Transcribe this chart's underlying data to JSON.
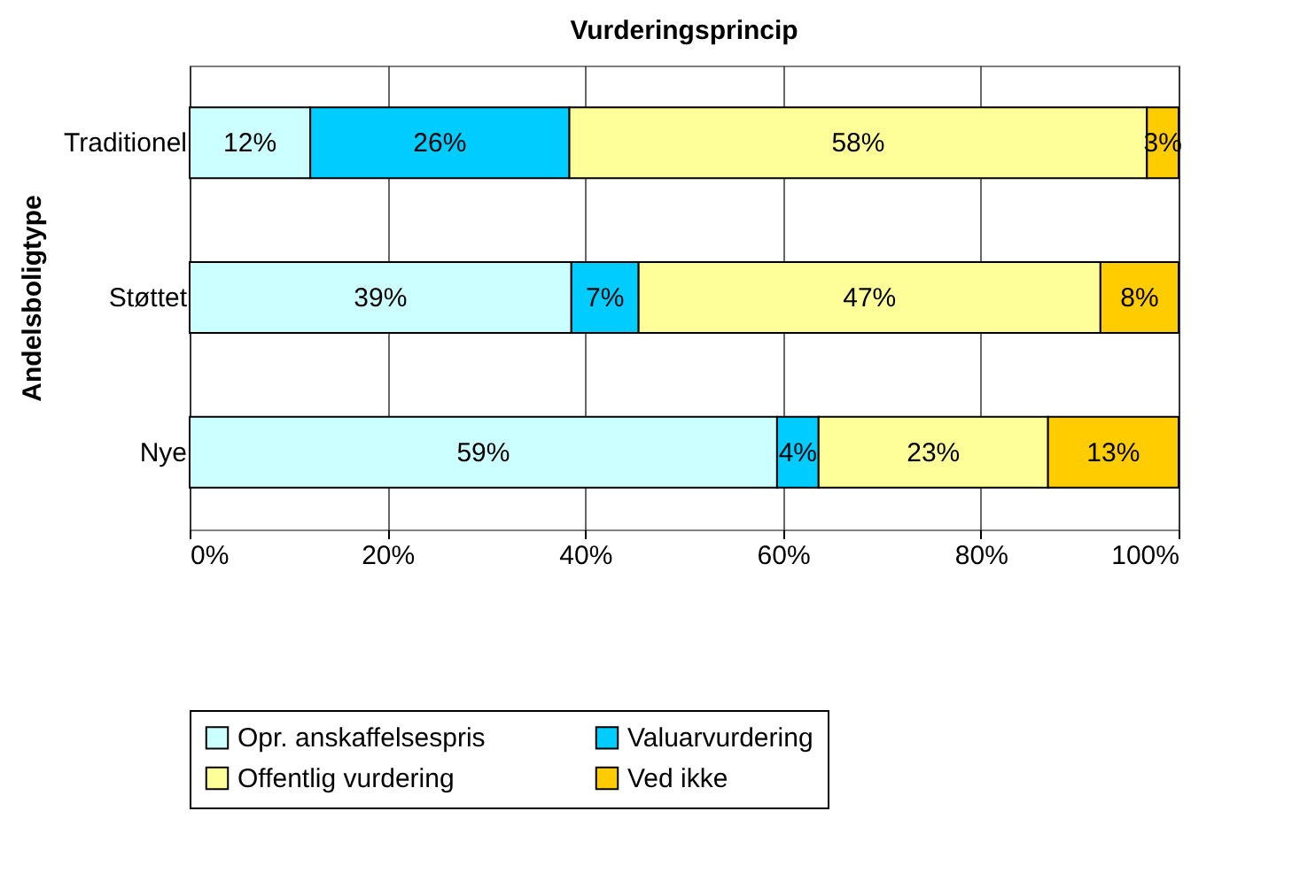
{
  "chart_data": {
    "type": "bar",
    "orientation": "horizontal",
    "stacked": true,
    "title": "Vurderingsprincip",
    "ylabel": "Andelsboligtype",
    "categories": [
      "Traditionel",
      "Støttet",
      "Nye"
    ],
    "series": [
      {
        "name": "Opr. anskaffelsespris",
        "color": "#ccffff",
        "values": [
          12.2,
          38.6,
          59.4
        ],
        "value_labels": [
          "12%",
          "39%",
          "59%"
        ]
      },
      {
        "name": "Valuarvurdering",
        "color": "#00ccff",
        "values": [
          26.2,
          6.8,
          4.2
        ],
        "value_labels": [
          "26%",
          "7%",
          "4%"
        ]
      },
      {
        "name": "Offentlig vurdering",
        "color": "#ffff99",
        "values": [
          58.4,
          46.7,
          23.2
        ],
        "value_labels": [
          "58%",
          "47%",
          "23%"
        ]
      },
      {
        "name": "Ved ikke",
        "color": "#ffcc00",
        "values": [
          3.2,
          7.9,
          13.2
        ],
        "value_labels": [
          "3%",
          "8%",
          "13%"
        ]
      }
    ],
    "xlim": [
      0,
      100
    ],
    "xticks": [
      {
        "value": 0,
        "label": "0%"
      },
      {
        "value": 20,
        "label": "20%"
      },
      {
        "value": 40,
        "label": "40%"
      },
      {
        "value": 60,
        "label": "60%"
      },
      {
        "value": 80,
        "label": "80%"
      },
      {
        "value": 100,
        "label": "100%"
      }
    ],
    "grid": "x",
    "legend": "bottom"
  }
}
